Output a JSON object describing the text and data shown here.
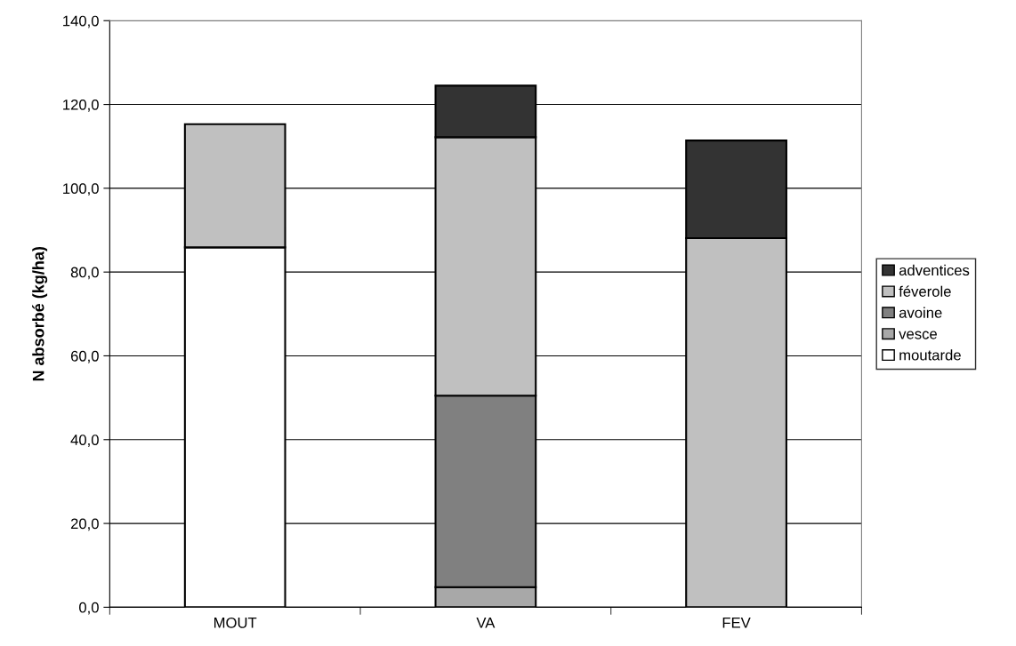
{
  "chart_data": {
    "type": "bar",
    "stacked": true,
    "ylabel": "N absorbé (kg/ha)",
    "categories": [
      "MOUT",
      "VA",
      "FEV"
    ],
    "series": [
      {
        "name": "moutarde",
        "color": "#ffffff",
        "values": [
          85.9,
          null,
          null
        ]
      },
      {
        "name": "vesce",
        "color": "#a8a8a8",
        "values": [
          null,
          4.8,
          null
        ]
      },
      {
        "name": "avoine",
        "color": "#808080",
        "values": [
          null,
          45.7,
          null
        ]
      },
      {
        "name": "féverole",
        "color": "#c0c0c0",
        "values": [
          29.4,
          61.7,
          88.1
        ]
      },
      {
        "name": "adventices",
        "color": "#333333",
        "values": [
          null,
          12.3,
          23.3
        ]
      }
    ],
    "ylim": [
      0,
      140
    ],
    "yticks": [
      {
        "value": 0,
        "label": "0,0"
      },
      {
        "value": 20,
        "label": "20,0"
      },
      {
        "value": 40,
        "label": "40,0"
      },
      {
        "value": 60,
        "label": "60,0"
      },
      {
        "value": 80,
        "label": "80,0"
      },
      {
        "value": 100,
        "label": "100,0"
      },
      {
        "value": 120,
        "label": "120,0"
      },
      {
        "value": 140,
        "label": "140,0"
      }
    ],
    "grid": "y",
    "legend": "right"
  }
}
